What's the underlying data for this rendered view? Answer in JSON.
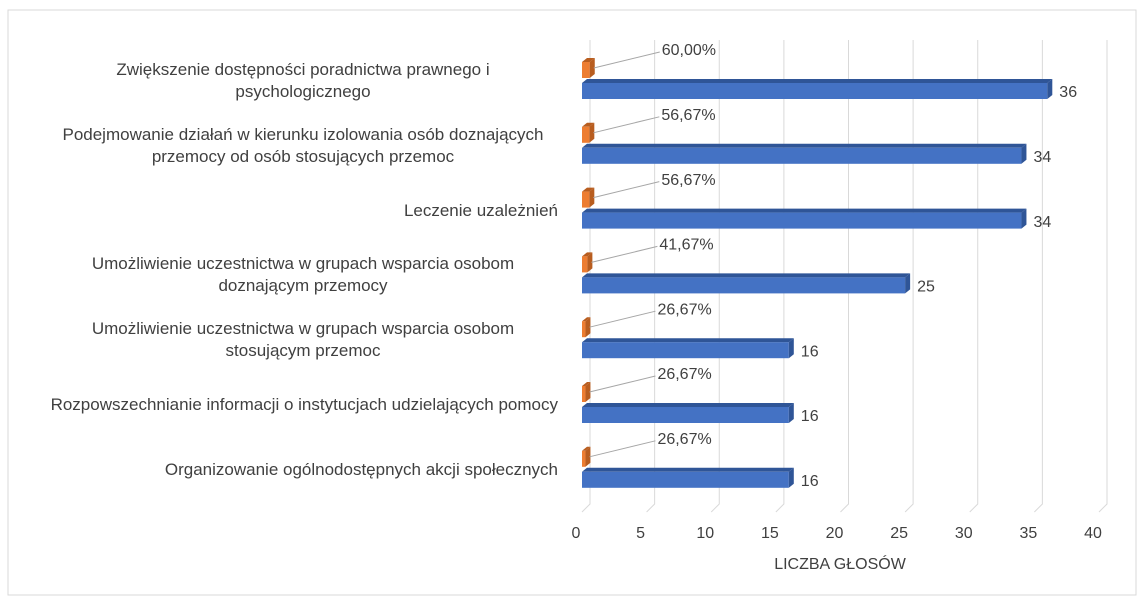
{
  "chart_data": {
    "type": "bar",
    "orientation": "horizontal",
    "categories": [
      "Zwiększenie dostępności poradnictwa prawnego i psychologicznego",
      "Podejmowanie działań w kierunku izolowania osób doznających przemocy od osób stosujących przemoc",
      "Leczenie uzależnień",
      "Umożliwienie uczestnictwa w grupach wsparcia osobom doznającym przemocy",
      "Umożliwienie uczestnictwa w grupach wsparcia osobom stosującym przemoc",
      "Rozpowszechnianie informacji o instytucjach udzielających pomocy",
      "Organizowanie ogólnodostępnych akcji społecznych"
    ],
    "series": [
      {
        "color": "#ed7d31",
        "values": [
          0.6,
          0.5667,
          0.5667,
          0.4167,
          0.2667,
          0.2667,
          0.2667
        ],
        "value_labels": [
          "60,00%",
          "56,67%",
          "56,67%",
          "41,67%",
          "26,67%",
          "26,67%",
          "26,67%"
        ]
      },
      {
        "color": "#4472c4",
        "values": [
          36,
          34,
          34,
          25,
          16,
          16,
          16
        ]
      }
    ],
    "xlabel": "LICZBA GŁOSÓW",
    "xlim": [
      0,
      40
    ],
    "xticks": [
      0,
      5,
      10,
      15,
      20,
      25,
      30,
      35,
      40
    ],
    "grid": true
  }
}
